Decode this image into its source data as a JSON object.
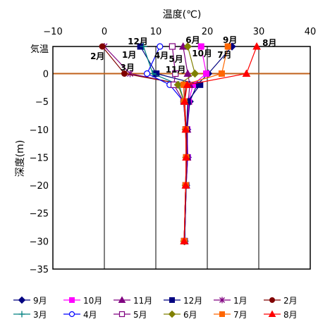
{
  "chart_data": {
    "type": "line",
    "x_axis": {
      "title": "温度(℃)",
      "min": -10,
      "max": 40,
      "step": 10,
      "tick_labels": [
        "−10",
        "0",
        "10",
        "20",
        "30",
        "40"
      ],
      "position": "top"
    },
    "y_axis": {
      "title": "深度(m)",
      "min": -35,
      "max": 0,
      "step": 5,
      "tick_labels": [
        "0",
        "−5",
        "−10",
        "−15",
        "−20",
        "−25",
        "−30",
        "−35"
      ],
      "extra_category_label": "気温"
    },
    "grid": "vertical",
    "zero_line_color": "#c0601a",
    "legend_placement": "bottom",
    "series": [
      {
        "name": "9月",
        "color": "#000080",
        "marker": "diamond",
        "air_temp": 24.8,
        "points": [
          {
            "t": 20.2,
            "d": 0
          },
          {
            "t": 18.0,
            "d": -2
          },
          {
            "t": 16.6,
            "d": -5
          },
          {
            "t": 16.1,
            "d": -10
          },
          {
            "t": 16.2,
            "d": -15
          },
          {
            "t": 15.9,
            "d": -20
          },
          {
            "t": 15.6,
            "d": -30
          }
        ]
      },
      {
        "name": "10月",
        "color": "#ff00ff",
        "marker": "square",
        "air_temp": 18.8,
        "points": [
          {
            "t": 19.8,
            "d": 0
          },
          {
            "t": 17.2,
            "d": -2
          },
          {
            "t": 16.4,
            "d": -5
          },
          {
            "t": 16.1,
            "d": -10
          },
          {
            "t": 16.2,
            "d": -15
          },
          {
            "t": 15.9,
            "d": -20
          },
          {
            "t": 15.6,
            "d": -30
          }
        ]
      },
      {
        "name": "11月",
        "color": "#800080",
        "marker": "triangle",
        "air_temp": 15.3,
        "points": [
          {
            "t": 16.2,
            "d": 0
          },
          {
            "t": 16.6,
            "d": -2
          },
          {
            "t": 16.3,
            "d": -5
          },
          {
            "t": 16.1,
            "d": -10
          },
          {
            "t": 16.1,
            "d": -15
          },
          {
            "t": 15.9,
            "d": -20
          },
          {
            "t": 15.6,
            "d": -30
          }
        ]
      },
      {
        "name": "12月",
        "color": "#000080",
        "marker": "square",
        "air_temp": 7.0,
        "points": [
          {
            "t": 10.1,
            "d": 0
          },
          {
            "t": 18.6,
            "d": -2
          },
          {
            "t": 16.2,
            "d": -5
          },
          {
            "t": 16.0,
            "d": -10
          },
          {
            "t": 16.1,
            "d": -15
          },
          {
            "t": 15.9,
            "d": -20
          },
          {
            "t": 15.6,
            "d": -30
          }
        ]
      },
      {
        "name": "1月",
        "color": "#800080",
        "marker": "star",
        "air_temp": 0.0,
        "points": [
          {
            "t": 5.0,
            "d": 0
          },
          {
            "t": 15.4,
            "d": -2
          },
          {
            "t": 15.6,
            "d": -5
          },
          {
            "t": 15.9,
            "d": -10
          },
          {
            "t": 16.0,
            "d": -15
          },
          {
            "t": 15.8,
            "d": -20
          },
          {
            "t": 15.5,
            "d": -30
          }
        ]
      },
      {
        "name": "2月",
        "color": "#800000",
        "marker": "circle",
        "air_temp": -0.4,
        "points": [
          {
            "t": 3.9,
            "d": 0
          },
          {
            "t": 15.8,
            "d": -2
          },
          {
            "t": 15.6,
            "d": -5
          },
          {
            "t": 15.9,
            "d": -10
          },
          {
            "t": 15.9,
            "d": -15
          },
          {
            "t": 15.8,
            "d": -20
          },
          {
            "t": 15.5,
            "d": -30
          }
        ]
      },
      {
        "name": "3月",
        "color": "#008080",
        "marker": "plus",
        "air_temp": 7.6,
        "points": [
          {
            "t": 9.4,
            "d": 0
          },
          {
            "t": 14.5,
            "d": -2
          },
          {
            "t": 15.5,
            "d": -5
          },
          {
            "t": 15.8,
            "d": -10
          },
          {
            "t": 15.9,
            "d": -15
          },
          {
            "t": 15.8,
            "d": -20
          },
          {
            "t": 15.5,
            "d": -30
          }
        ]
      },
      {
        "name": "4月",
        "color": "#0000ff",
        "marker": "open-circle",
        "air_temp": 10.8,
        "points": [
          {
            "t": 8.3,
            "d": 0
          },
          {
            "t": 12.7,
            "d": -2
          },
          {
            "t": 15.4,
            "d": -5
          },
          {
            "t": 15.8,
            "d": -10
          },
          {
            "t": 15.9,
            "d": -15
          },
          {
            "t": 15.8,
            "d": -20
          },
          {
            "t": 15.5,
            "d": -30
          }
        ]
      },
      {
        "name": "5月",
        "color": "#800080",
        "marker": "open-square",
        "air_temp": 13.2,
        "points": [
          {
            "t": 13.8,
            "d": 0
          },
          {
            "t": 13.5,
            "d": -2
          },
          {
            "t": 15.4,
            "d": -5
          },
          {
            "t": 15.8,
            "d": -10
          },
          {
            "t": 15.9,
            "d": -15
          },
          {
            "t": 15.8,
            "d": -20
          },
          {
            "t": 15.5,
            "d": -30
          }
        ]
      },
      {
        "name": "6月",
        "color": "#808000",
        "marker": "diamond",
        "air_temp": 16.2,
        "points": [
          {
            "t": 17.6,
            "d": 0
          },
          {
            "t": 14.3,
            "d": -2
          },
          {
            "t": 15.5,
            "d": -5
          },
          {
            "t": 15.8,
            "d": -10
          },
          {
            "t": 15.9,
            "d": -15
          },
          {
            "t": 15.8,
            "d": -20
          },
          {
            "t": 15.5,
            "d": -30
          }
        ]
      },
      {
        "name": "7月",
        "color": "#ff6600",
        "marker": "square",
        "air_temp": 24.0,
        "points": [
          {
            "t": 22.8,
            "d": 0
          },
          {
            "t": 15.4,
            "d": -2
          },
          {
            "t": 15.5,
            "d": -5
          },
          {
            "t": 15.8,
            "d": -10
          },
          {
            "t": 15.9,
            "d": -15
          },
          {
            "t": 15.8,
            "d": -20
          },
          {
            "t": 15.5,
            "d": -30
          }
        ]
      },
      {
        "name": "8月",
        "color": "#ff0000",
        "marker": "triangle",
        "air_temp": 29.6,
        "points": [
          {
            "t": 27.6,
            "d": 0
          },
          {
            "t": 16.1,
            "d": -2
          },
          {
            "t": 15.6,
            "d": -5
          },
          {
            "t": 15.8,
            "d": -10
          },
          {
            "t": 15.9,
            "d": -15
          },
          {
            "t": 15.8,
            "d": -20
          },
          {
            "t": 15.5,
            "d": -30
          }
        ]
      }
    ],
    "annotations": [
      {
        "text": "12月",
        "series": "12月"
      },
      {
        "text": "6月",
        "series": "6月"
      },
      {
        "text": "9月",
        "series": "9月"
      },
      {
        "text": "8月",
        "series": "8月"
      },
      {
        "text": "2月",
        "series": "2月"
      },
      {
        "text": "1月",
        "series": "1月"
      },
      {
        "text": "4月",
        "series": "4月"
      },
      {
        "text": "5月",
        "series": "5月"
      },
      {
        "text": "10月",
        "series": "10月"
      },
      {
        "text": "7月",
        "series": "7月"
      },
      {
        "text": "3月",
        "series": "3月"
      },
      {
        "text": "11月",
        "series": "11月"
      }
    ]
  }
}
